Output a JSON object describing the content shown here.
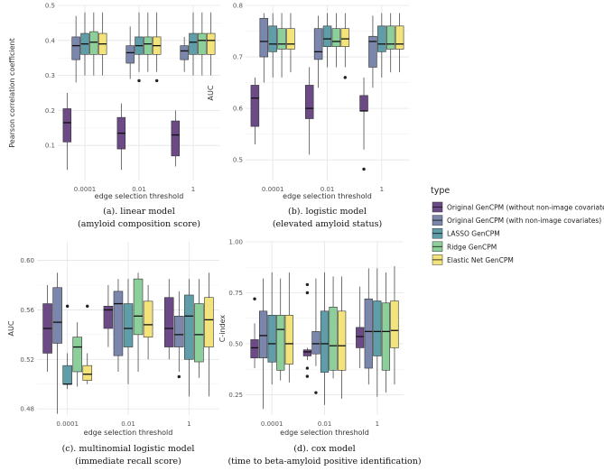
{
  "legend": {
    "title": "type",
    "entries": [
      {
        "label": "Original GenCPM (without non-image covariates)",
        "color": "#6b4a85"
      },
      {
        "label": "Original GenCPM (with non-image covariates)",
        "color": "#7a86ab"
      },
      {
        "label": "LASSO GenCPM",
        "color": "#5f9ea8"
      },
      {
        "label": "Ridge GenCPM",
        "color": "#8ccf9a"
      },
      {
        "label": "Elastic Net GenCPM",
        "color": "#f2e47a"
      }
    ]
  },
  "chart_data": [
    {
      "type": "boxplot",
      "caption_line1": "(a). linear model",
      "caption_line2": "(amyloid composition score)",
      "xlabel": "edge selection threshold",
      "ylabel": "Pearson correlation coefficient",
      "categories": [
        "0.0001",
        "0.01",
        "1"
      ],
      "ylim": [
        0.0,
        0.5
      ],
      "yticks": [
        0.1,
        0.2,
        0.3,
        0.4,
        0.5
      ],
      "ytick_labels": [
        "0.1",
        "0.2",
        "0.3",
        "0.4",
        "0.5"
      ],
      "series": [
        {
          "name": "Original GenCPM (without non-image covariates)",
          "boxes": [
            {
              "min": 0.03,
              "q1": 0.11,
              "median": 0.165,
              "q3": 0.205,
              "max": 0.25,
              "outliers": []
            },
            {
              "min": 0.03,
              "q1": 0.09,
              "median": 0.135,
              "q3": 0.18,
              "max": 0.22,
              "outliers": []
            },
            {
              "min": 0.04,
              "q1": 0.07,
              "median": 0.13,
              "q3": 0.17,
              "max": 0.2,
              "outliers": []
            }
          ]
        },
        {
          "name": "Original GenCPM (with non-image covariates)",
          "boxes": [
            {
              "min": 0.28,
              "q1": 0.345,
              "median": 0.385,
              "q3": 0.41,
              "max": 0.47,
              "outliers": []
            },
            {
              "min": 0.29,
              "q1": 0.335,
              "median": 0.365,
              "q3": 0.385,
              "max": 0.44,
              "outliers": []
            },
            {
              "min": 0.31,
              "q1": 0.345,
              "median": 0.37,
              "q3": 0.385,
              "max": 0.41,
              "outliers": []
            }
          ]
        },
        {
          "name": "LASSO GenCPM",
          "boxes": [
            {
              "min": 0.3,
              "q1": 0.36,
              "median": 0.39,
              "q3": 0.42,
              "max": 0.48,
              "outliers": []
            },
            {
              "min": 0.31,
              "q1": 0.36,
              "median": 0.385,
              "q3": 0.41,
              "max": 0.48,
              "outliers": [
                0.285
              ]
            },
            {
              "min": 0.3,
              "q1": 0.36,
              "median": 0.395,
              "q3": 0.42,
              "max": 0.48,
              "outliers": []
            }
          ]
        },
        {
          "name": "Ridge GenCPM",
          "boxes": [
            {
              "min": 0.3,
              "q1": 0.36,
              "median": 0.395,
              "q3": 0.425,
              "max": 0.48,
              "outliers": []
            },
            {
              "min": 0.31,
              "q1": 0.36,
              "median": 0.39,
              "q3": 0.41,
              "max": 0.48,
              "outliers": []
            },
            {
              "min": 0.3,
              "q1": 0.36,
              "median": 0.4,
              "q3": 0.42,
              "max": 0.48,
              "outliers": []
            }
          ]
        },
        {
          "name": "Elastic Net GenCPM",
          "boxes": [
            {
              "min": 0.3,
              "q1": 0.36,
              "median": 0.39,
              "q3": 0.42,
              "max": 0.48,
              "outliers": []
            },
            {
              "min": 0.31,
              "q1": 0.36,
              "median": 0.385,
              "q3": 0.41,
              "max": 0.48,
              "outliers": [
                0.285
              ]
            },
            {
              "min": 0.3,
              "q1": 0.36,
              "median": 0.4,
              "q3": 0.42,
              "max": 0.48,
              "outliers": []
            }
          ]
        }
      ]
    },
    {
      "type": "boxplot",
      "caption_line1": "(b). logistic model",
      "caption_line2": "(elevated amyloid status)",
      "xlabel": "edge selection threshold",
      "ylabel": "AUC",
      "categories": [
        "0.0001",
        "0.01",
        "1"
      ],
      "ylim": [
        0.46,
        0.8
      ],
      "yticks": [
        0.5,
        0.6,
        0.7,
        0.8
      ],
      "ytick_labels": [
        "0.5",
        "0.6",
        "0.7",
        "0.8"
      ],
      "series": [
        {
          "name": "Original GenCPM (without non-image covariates)",
          "boxes": [
            {
              "min": 0.53,
              "q1": 0.565,
              "median": 0.62,
              "q3": 0.645,
              "max": 0.66,
              "outliers": []
            },
            {
              "min": 0.51,
              "q1": 0.58,
              "median": 0.6,
              "q3": 0.645,
              "max": 0.68,
              "outliers": []
            },
            {
              "min": 0.52,
              "q1": 0.595,
              "median": 0.595,
              "q3": 0.625,
              "max": 0.66,
              "outliers": [
                0.482
              ]
            }
          ]
        },
        {
          "name": "Original GenCPM (with non-image covariates)",
          "boxes": [
            {
              "min": 0.65,
              "q1": 0.7,
              "median": 0.73,
              "q3": 0.775,
              "max": 0.785,
              "outliers": []
            },
            {
              "min": 0.64,
              "q1": 0.695,
              "median": 0.71,
              "q3": 0.755,
              "max": 0.78,
              "outliers": []
            },
            {
              "min": 0.64,
              "q1": 0.68,
              "median": 0.73,
              "q3": 0.74,
              "max": 0.78,
              "outliers": []
            }
          ]
        },
        {
          "name": "LASSO GenCPM",
          "boxes": [
            {
              "min": 0.66,
              "q1": 0.71,
              "median": 0.725,
              "q3": 0.76,
              "max": 0.785,
              "outliers": []
            },
            {
              "min": 0.68,
              "q1": 0.72,
              "median": 0.735,
              "q3": 0.76,
              "max": 0.785,
              "outliers": []
            },
            {
              "min": 0.66,
              "q1": 0.71,
              "median": 0.725,
              "q3": 0.76,
              "max": 0.785,
              "outliers": []
            }
          ]
        },
        {
          "name": "Ridge GenCPM",
          "boxes": [
            {
              "min": 0.66,
              "q1": 0.715,
              "median": 0.725,
              "q3": 0.755,
              "max": 0.785,
              "outliers": []
            },
            {
              "min": 0.68,
              "q1": 0.72,
              "median": 0.73,
              "q3": 0.755,
              "max": 0.785,
              "outliers": []
            },
            {
              "min": 0.67,
              "q1": 0.715,
              "median": 0.725,
              "q3": 0.76,
              "max": 0.785,
              "outliers": []
            }
          ]
        },
        {
          "name": "Elastic Net GenCPM",
          "boxes": [
            {
              "min": 0.67,
              "q1": 0.715,
              "median": 0.725,
              "q3": 0.755,
              "max": 0.785,
              "outliers": []
            },
            {
              "min": 0.68,
              "q1": 0.72,
              "median": 0.735,
              "q3": 0.755,
              "max": 0.785,
              "outliers": [
                0.66
              ]
            },
            {
              "min": 0.67,
              "q1": 0.715,
              "median": 0.725,
              "q3": 0.76,
              "max": 0.785,
              "outliers": []
            }
          ]
        }
      ]
    },
    {
      "type": "boxplot",
      "caption_line1": "(c). multinomial logistic model",
      "caption_line2": "(immediate recall score)",
      "xlabel": "edge selection threshold",
      "ylabel": "AUC",
      "categories": [
        "0.0001",
        "0.01",
        "1"
      ],
      "ylim": [
        0.475,
        0.615
      ],
      "yticks": [
        0.48,
        0.52,
        0.56,
        0.6
      ],
      "ytick_labels": [
        "0.48",
        "0.52",
        "0.56",
        "0.60"
      ],
      "series": [
        {
          "name": "Original GenCPM (without non-image covariates)",
          "boxes": [
            {
              "min": 0.51,
              "q1": 0.525,
              "median": 0.545,
              "q3": 0.565,
              "max": 0.58,
              "outliers": []
            },
            {
              "min": 0.53,
              "q1": 0.545,
              "median": 0.56,
              "q3": 0.563,
              "max": 0.58,
              "outliers": []
            },
            {
              "min": 0.52,
              "q1": 0.53,
              "median": 0.545,
              "q3": 0.57,
              "max": 0.585,
              "outliers": []
            }
          ]
        },
        {
          "name": "Original GenCPM (with non-image covariates)",
          "boxes": [
            {
              "min": 0.476,
              "q1": 0.533,
              "median": 0.55,
              "q3": 0.578,
              "max": 0.59,
              "outliers": []
            },
            {
              "min": 0.51,
              "q1": 0.523,
              "median": 0.565,
              "q3": 0.575,
              "max": 0.585,
              "outliers": []
            },
            {
              "min": 0.51,
              "q1": 0.53,
              "median": 0.54,
              "q3": 0.555,
              "max": 0.575,
              "outliers": [
                0.506
              ]
            }
          ]
        },
        {
          "name": "LASSO GenCPM",
          "boxes": [
            {
              "min": 0.496,
              "q1": 0.5,
              "median": 0.5,
              "q3": 0.515,
              "max": 0.525,
              "outliers": [
                0.563
              ]
            },
            {
              "min": 0.5,
              "q1": 0.53,
              "median": 0.545,
              "q3": 0.565,
              "max": 0.585,
              "outliers": []
            },
            {
              "min": 0.49,
              "q1": 0.52,
              "median": 0.555,
              "q3": 0.572,
              "max": 0.585,
              "outliers": []
            }
          ]
        },
        {
          "name": "Ridge GenCPM",
          "boxes": [
            {
              "min": 0.498,
              "q1": 0.51,
              "median": 0.53,
              "q3": 0.538,
              "max": 0.55,
              "outliers": []
            },
            {
              "min": 0.51,
              "q1": 0.54,
              "median": 0.555,
              "q3": 0.585,
              "max": 0.59,
              "outliers": []
            },
            {
              "min": 0.505,
              "q1": 0.518,
              "median": 0.54,
              "q3": 0.565,
              "max": 0.585,
              "outliers": []
            }
          ]
        },
        {
          "name": "Elastic Net GenCPM",
          "boxes": [
            {
              "min": 0.5,
              "q1": 0.503,
              "median": 0.508,
              "q3": 0.515,
              "max": 0.525,
              "outliers": [
                0.563
              ]
            },
            {
              "min": 0.52,
              "q1": 0.538,
              "median": 0.548,
              "q3": 0.567,
              "max": 0.58,
              "outliers": []
            },
            {
              "min": 0.49,
              "q1": 0.53,
              "median": 0.552,
              "q3": 0.57,
              "max": 0.59,
              "outliers": []
            }
          ]
        }
      ]
    },
    {
      "type": "boxplot",
      "caption_line1": "(d). cox model",
      "caption_line2": "(time to beta-amyloid positive identification)",
      "xlabel": "edge selection threshold",
      "ylabel": "C-index",
      "categories": [
        "0.0001",
        "0.01",
        "1"
      ],
      "ylim": [
        0.15,
        1.0
      ],
      "yticks": [
        0.25,
        0.5,
        0.75,
        1.0
      ],
      "ytick_labels": [
        "0.25",
        "0.50",
        "0.75",
        "1.00"
      ],
      "series": [
        {
          "name": "Original GenCPM (without non-image covariates)",
          "boxes": [
            {
              "min": 0.38,
              "q1": 0.43,
              "median": 0.48,
              "q3": 0.52,
              "max": 0.6,
              "outliers": [
                0.72
              ]
            },
            {
              "min": 0.42,
              "q1": 0.44,
              "median": 0.46,
              "q3": 0.47,
              "max": 0.48,
              "outliers": [
                0.79,
                0.75,
                0.38,
                0.34
              ]
            },
            {
              "min": 0.38,
              "q1": 0.48,
              "median": 0.535,
              "q3": 0.58,
              "max": 0.78,
              "outliers": []
            }
          ]
        },
        {
          "name": "Original GenCPM (with non-image covariates)",
          "boxes": [
            {
              "min": 0.18,
              "q1": 0.43,
              "median": 0.54,
              "q3": 0.66,
              "max": 0.82,
              "outliers": []
            },
            {
              "min": 0.39,
              "q1": 0.45,
              "median": 0.5,
              "q3": 0.56,
              "max": 0.82,
              "outliers": [
                0.26
              ]
            },
            {
              "min": 0.3,
              "q1": 0.38,
              "median": 0.56,
              "q3": 0.72,
              "max": 0.87,
              "outliers": []
            }
          ]
        },
        {
          "name": "LASSO GenCPM",
          "boxes": [
            {
              "min": 0.3,
              "q1": 0.41,
              "median": 0.5,
              "q3": 0.64,
              "max": 0.85,
              "outliers": []
            },
            {
              "min": 0.2,
              "q1": 0.36,
              "median": 0.5,
              "q3": 0.66,
              "max": 0.85,
              "outliers": []
            },
            {
              "min": 0.24,
              "q1": 0.44,
              "median": 0.56,
              "q3": 0.71,
              "max": 0.87,
              "outliers": []
            }
          ]
        },
        {
          "name": "Ridge GenCPM",
          "boxes": [
            {
              "min": 0.32,
              "q1": 0.37,
              "median": 0.57,
              "q3": 0.64,
              "max": 0.82,
              "outliers": []
            },
            {
              "min": 0.33,
              "q1": 0.37,
              "median": 0.49,
              "q3": 0.68,
              "max": 0.83,
              "outliers": []
            },
            {
              "min": 0.26,
              "q1": 0.37,
              "median": 0.56,
              "q3": 0.7,
              "max": 0.85,
              "outliers": []
            }
          ]
        },
        {
          "name": "Elastic Net GenCPM",
          "boxes": [
            {
              "min": 0.31,
              "q1": 0.4,
              "median": 0.5,
              "q3": 0.64,
              "max": 0.85,
              "outliers": []
            },
            {
              "min": 0.23,
              "q1": 0.37,
              "median": 0.49,
              "q3": 0.66,
              "max": 0.83,
              "outliers": []
            },
            {
              "min": 0.3,
              "q1": 0.48,
              "median": 0.565,
              "q3": 0.71,
              "max": 0.88,
              "outliers": []
            }
          ]
        }
      ]
    }
  ]
}
